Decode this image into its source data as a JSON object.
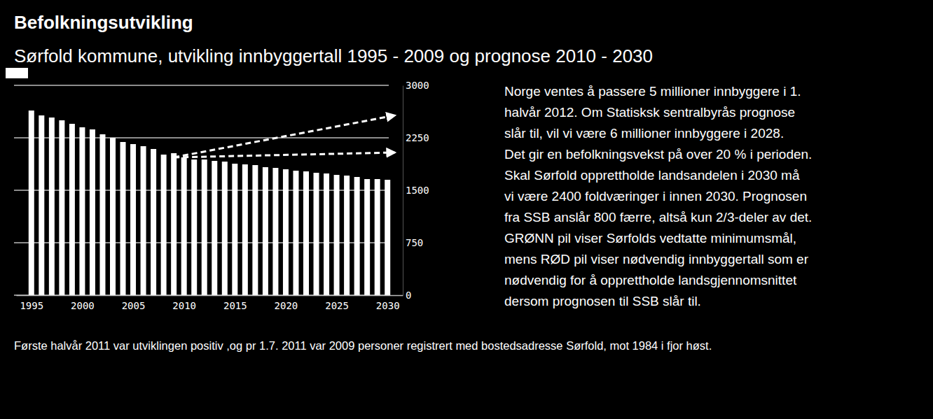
{
  "chart_data": {
    "type": "bar",
    "title": "Befolkningsutvikling",
    "subtitle": "Sørfold kommune, utvikling innbyggertall 1995 - 2009 og prognose 2010 - 2030",
    "x": [
      1995,
      1996,
      1997,
      1998,
      1999,
      2000,
      2001,
      2002,
      2003,
      2004,
      2005,
      2006,
      2007,
      2008,
      2009,
      2010,
      2011,
      2012,
      2013,
      2014,
      2015,
      2016,
      2017,
      2018,
      2019,
      2020,
      2021,
      2022,
      2023,
      2024,
      2025,
      2026,
      2027,
      2028,
      2029,
      2030
    ],
    "values": [
      2640,
      2570,
      2540,
      2500,
      2450,
      2400,
      2370,
      2300,
      2250,
      2190,
      2160,
      2130,
      2090,
      2010,
      2030,
      1970,
      1940,
      1940,
      1920,
      1910,
      1880,
      1870,
      1860,
      1830,
      1820,
      1800,
      1780,
      1770,
      1750,
      1740,
      1720,
      1710,
      1690,
      1660,
      1660,
      1650
    ],
    "color": "#ffffff",
    "xlim": [
      1993.5,
      2031.5
    ],
    "xticks": [
      1995,
      2000,
      2005,
      2010,
      2015,
      2020,
      2025,
      2030
    ],
    "ylim": [
      0,
      3000
    ],
    "yticks": [
      0,
      750,
      1500,
      2250,
      3000
    ],
    "grid": true,
    "arrows": [
      {
        "x": [
          2009,
          2030.7
        ],
        "y": [
          1970,
          2570
        ],
        "line_style": "dashed"
      },
      {
        "x": [
          2009,
          2030.7
        ],
        "y": [
          1970,
          2040
        ],
        "line_style": "dashed"
      }
    ],
    "annotations": [
      "Norge ventes å passere 5 millioner innbyggere i 1.",
      "halvår 2012. Om Statisksk sentralbyrås prognose",
      "slår til, vil vi være 6 millioner innbyggere i 2028.",
      "Det gir en befolkningsvekst på over 20 % i perioden.",
      "Skal Sørfold opprettholde landsandelen i 2030 må",
      "vi være 2400 foldværinger i innen 2030. Prognosen",
      "fra SSB anslår 800 færre, altså kun 2/3-deler av det.",
      "GRØNN pil viser Sørfolds vedtatte minimumsmål,",
      "mens RØD pil viser nødvendig innbyggertall som er",
      "nødvendig for å opprettholde landsgjennomsnittet",
      "dersom prognosen til SSB slår til."
    ],
    "footnote": "Første halvår 2011 var utviklingen positiv ,og pr 1.7. 2011 var 2009 personer registrert med bostedsadresse Sørfold, mot 1984 i fjor høst."
  }
}
